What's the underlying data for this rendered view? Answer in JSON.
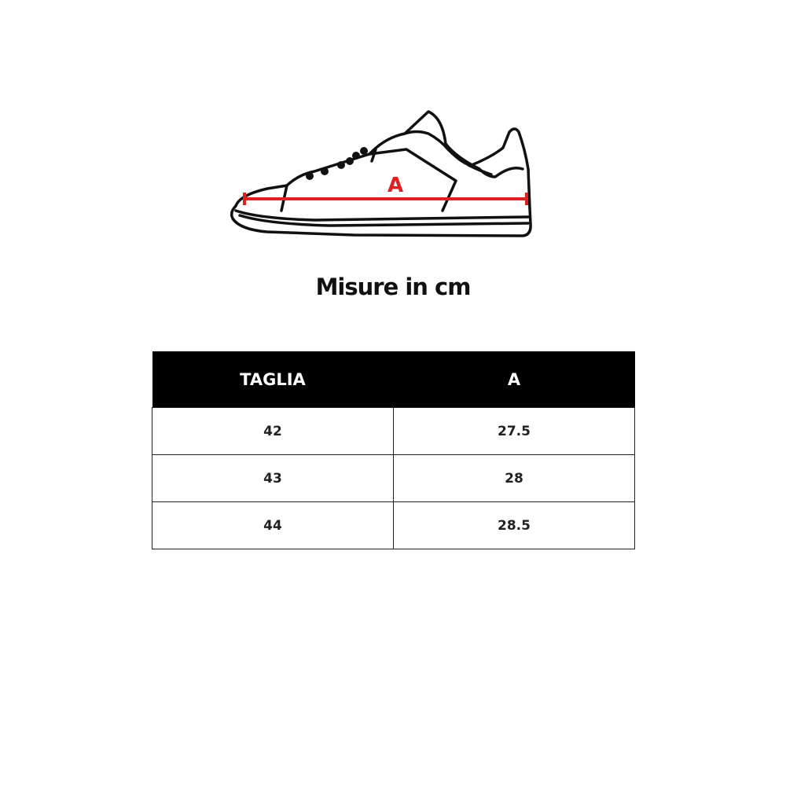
{
  "diagram": {
    "measure_label": "A",
    "measure_color": "#e02020",
    "icon": "sneaker-outline"
  },
  "title": "Misure in cm",
  "table": {
    "headers": [
      "TAGLIA",
      "A"
    ],
    "rows": [
      [
        "42",
        "27.5"
      ],
      [
        "43",
        "28"
      ],
      [
        "44",
        "28.5"
      ]
    ]
  }
}
